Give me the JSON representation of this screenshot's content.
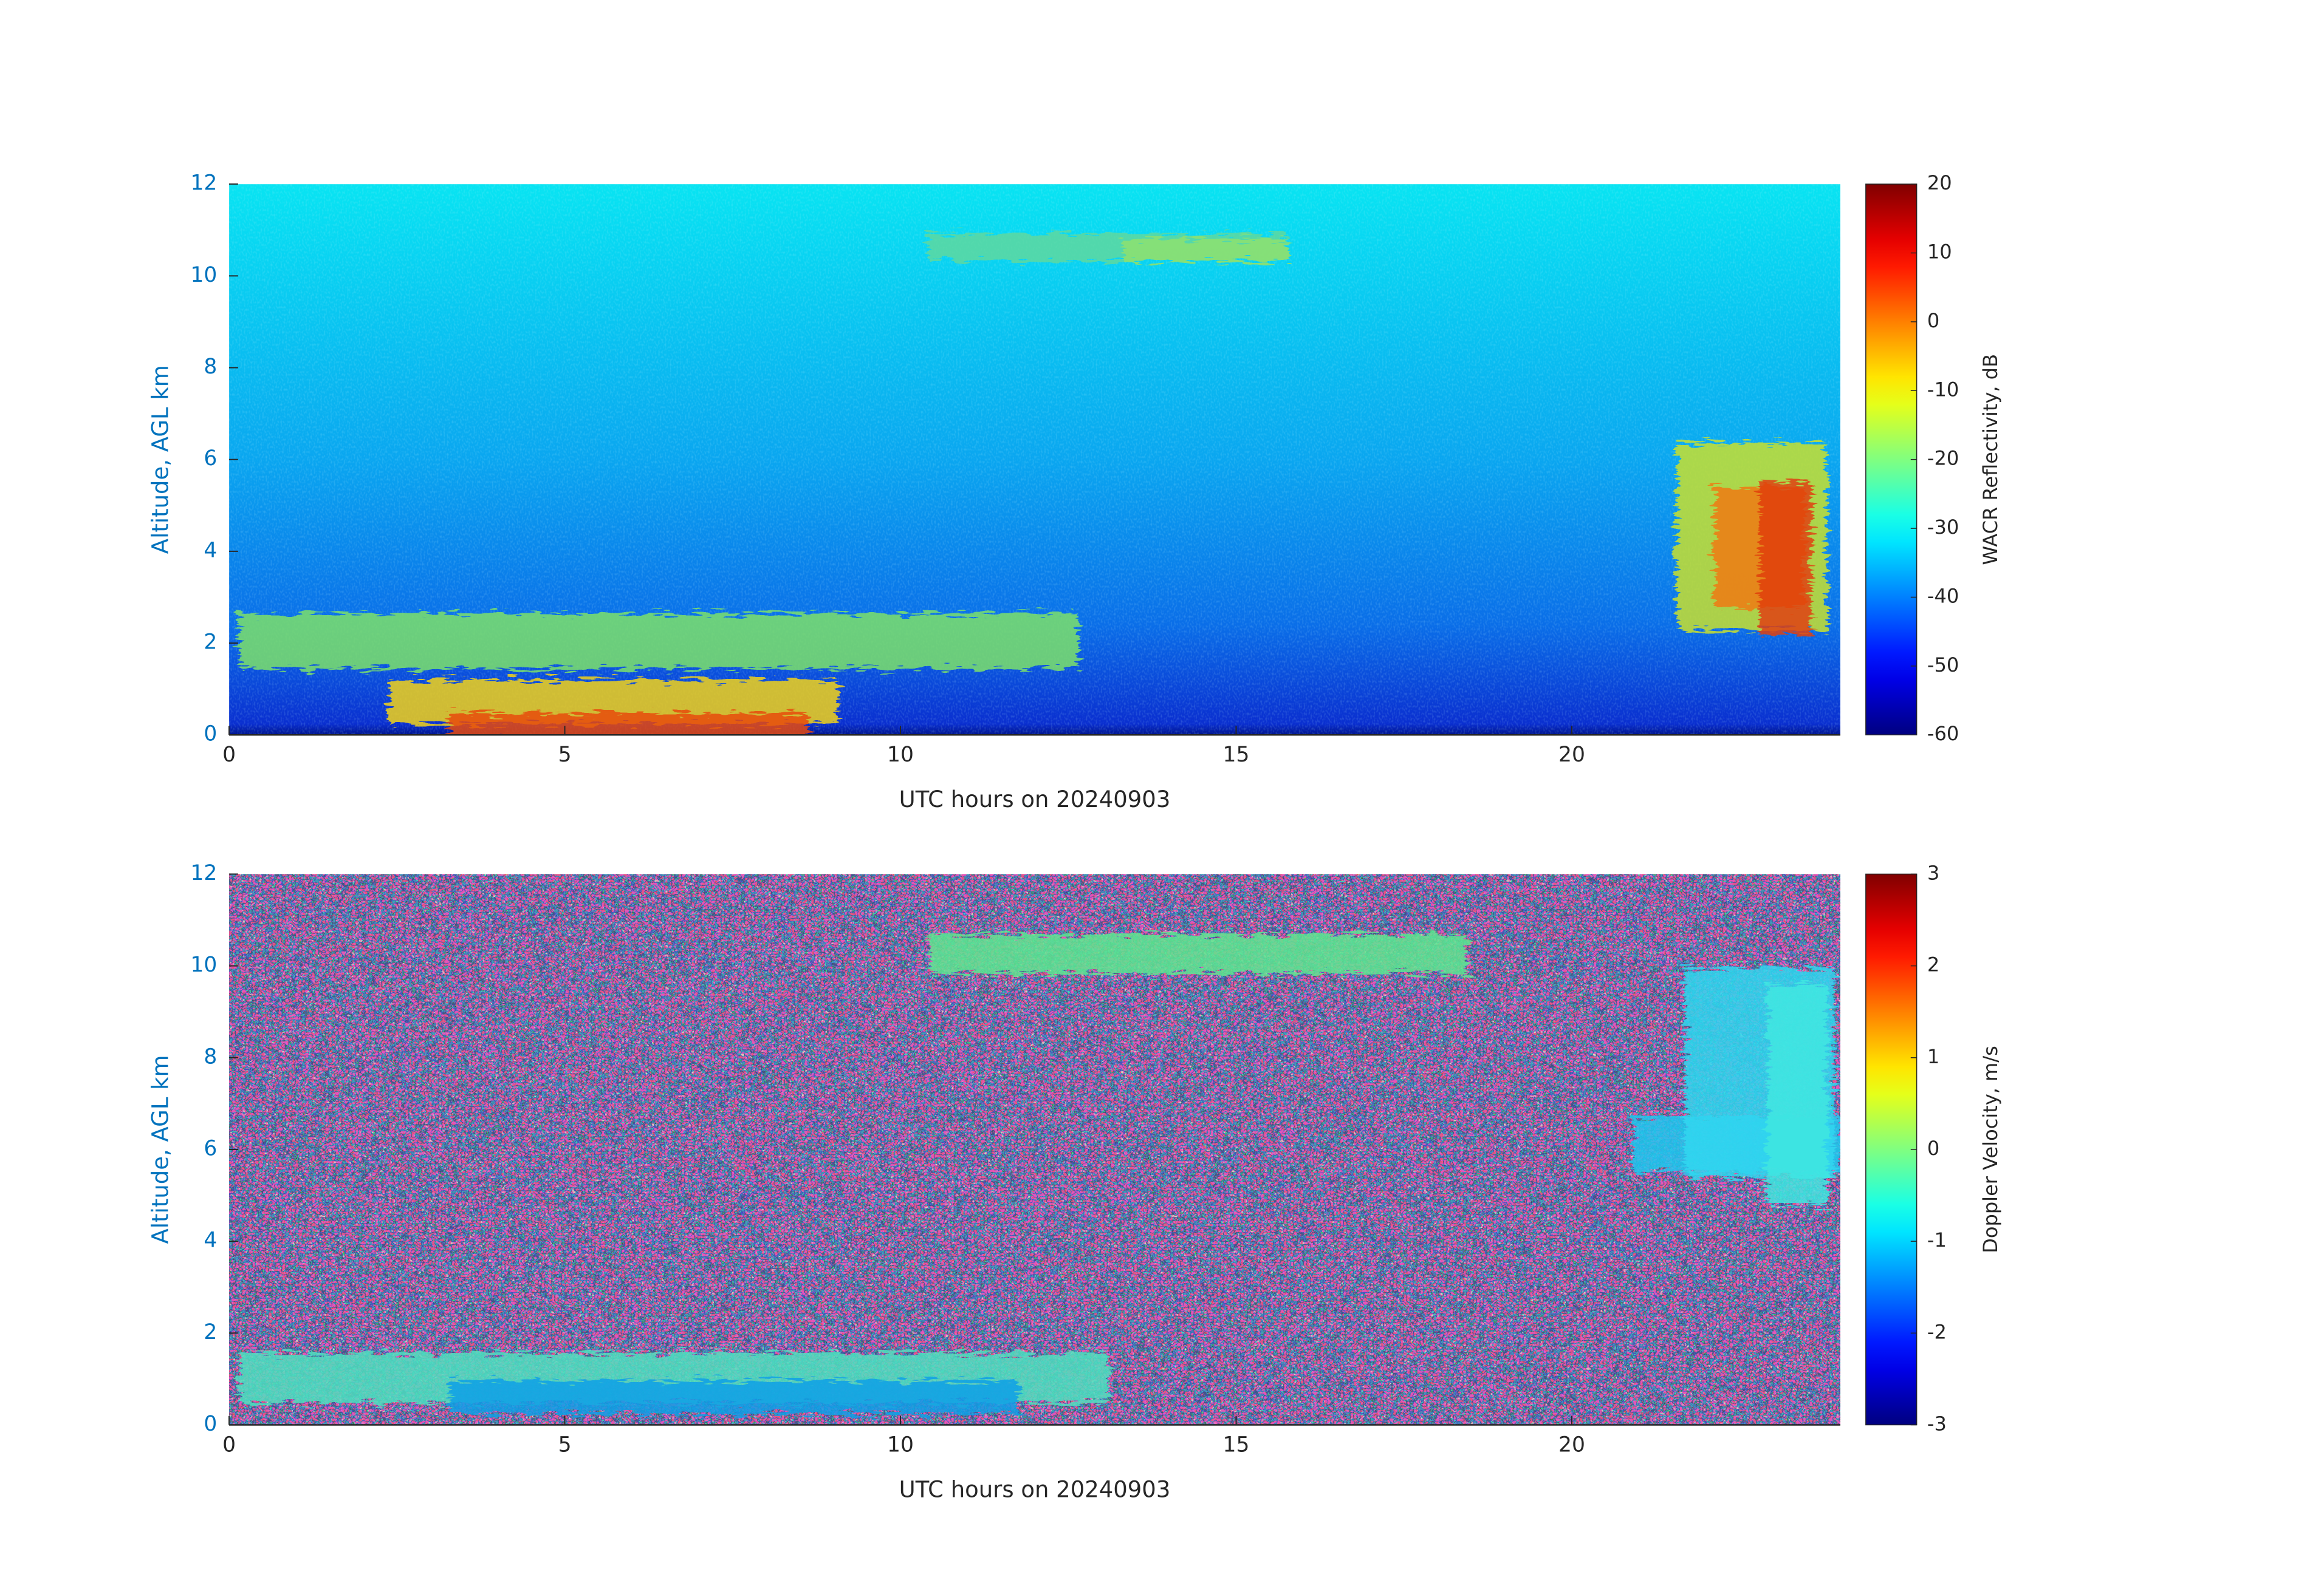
{
  "chart_data": [
    {
      "type": "heatmap",
      "xlabel": "UTC hours on 20240903",
      "ylabel": "Altitude, AGL km",
      "xlim": [
        0,
        24
      ],
      "xticks": [
        0,
        5,
        10,
        15,
        20
      ],
      "ylim": [
        0,
        12
      ],
      "yticks": [
        0,
        2,
        4,
        6,
        8,
        10,
        12
      ],
      "colorbar": {
        "label": "WACR Reflectivity, dB",
        "colormap": "jet",
        "lim": [
          -60,
          20
        ],
        "ticks": [
          -60,
          -50,
          -40,
          -30,
          -20,
          -10,
          0,
          10,
          20
        ]
      }
    },
    {
      "type": "heatmap",
      "xlabel": "UTC hours on 20240903",
      "ylabel": "Altitude, AGL km",
      "xlim": [
        0,
        24
      ],
      "xticks": [
        0,
        5,
        10,
        15,
        20
      ],
      "ylim": [
        0,
        12
      ],
      "yticks": [
        0,
        2,
        4,
        6,
        8,
        10,
        12
      ],
      "colorbar": {
        "label": "Doppler Velocity, m/s",
        "colormap": "jet",
        "lim": [
          -3,
          3
        ],
        "ticks": [
          -3,
          -2,
          -1,
          0,
          1,
          2,
          3
        ]
      }
    }
  ]
}
